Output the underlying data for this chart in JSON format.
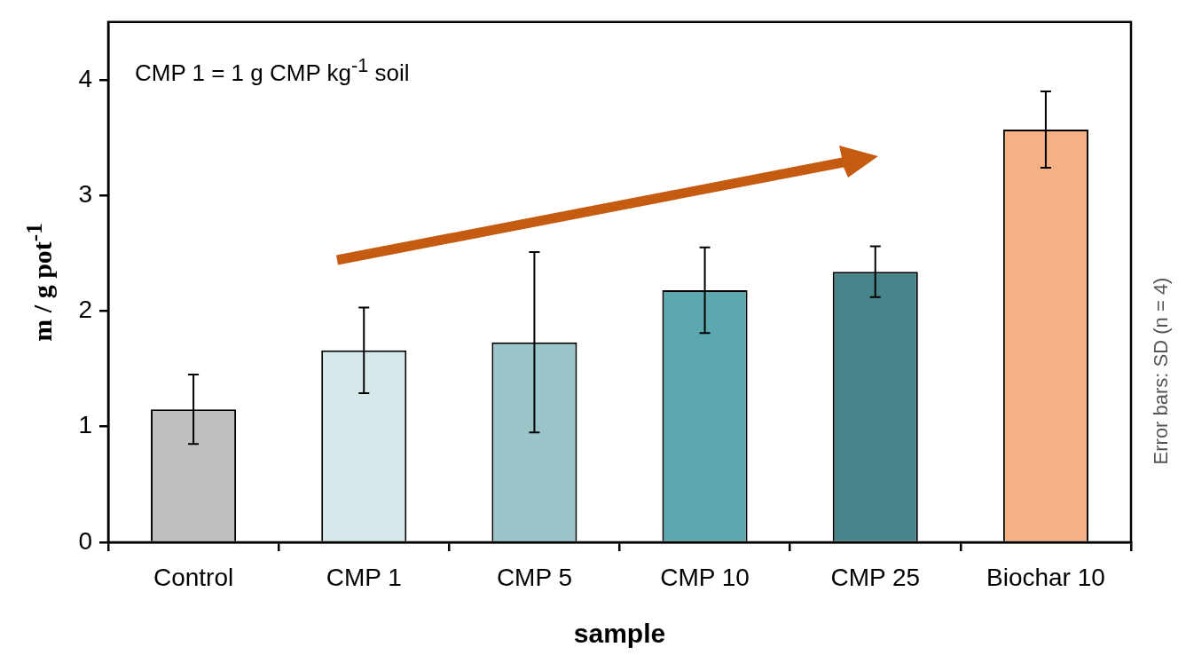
{
  "chart_data": {
    "type": "bar",
    "xlabel": "sample",
    "ylabel": "m / g pot$^{-1}$",
    "categories": [
      "Control",
      "CMP 1",
      "CMP 5",
      "CMP 10",
      "CMP 25",
      "Biochar 10"
    ],
    "values": [
      1.15,
      1.66,
      1.73,
      2.18,
      2.34,
      3.57
    ],
    "errors": [
      0.3,
      0.37,
      0.78,
      0.37,
      0.22,
      0.33
    ],
    "colors": [
      "#bfbfbf",
      "#d5e8ea",
      "#9cc5c9",
      "#5ba8ae",
      "#47838a",
      "#f4b183"
    ],
    "ylim": [
      0,
      4.5
    ],
    "yticks": [
      0,
      1,
      2,
      3,
      4
    ],
    "grid": false,
    "legend": false,
    "annotations": [
      "CMP 1 = 1 g CMP kg$^{-1}$ soil",
      "Error bars: SD (n = 4)"
    ]
  }
}
